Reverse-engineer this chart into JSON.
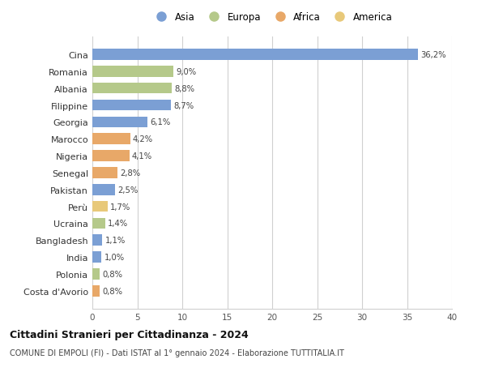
{
  "categories": [
    "Costa d'Avorio",
    "Polonia",
    "India",
    "Bangladesh",
    "Ucraina",
    "Perù",
    "Pakistan",
    "Senegal",
    "Nigeria",
    "Marocco",
    "Georgia",
    "Filippine",
    "Albania",
    "Romania",
    "Cina"
  ],
  "values": [
    0.8,
    0.8,
    1.0,
    1.1,
    1.4,
    1.7,
    2.5,
    2.8,
    4.1,
    4.2,
    6.1,
    8.7,
    8.8,
    9.0,
    36.2
  ],
  "labels": [
    "0,8%",
    "0,8%",
    "1,0%",
    "1,1%",
    "1,4%",
    "1,7%",
    "2,5%",
    "2,8%",
    "4,1%",
    "4,2%",
    "6,1%",
    "8,7%",
    "8,8%",
    "9,0%",
    "36,2%"
  ],
  "colors": [
    "#e8a868",
    "#b5c98a",
    "#7b9fd4",
    "#7b9fd4",
    "#b5c98a",
    "#e8c97a",
    "#7b9fd4",
    "#e8a868",
    "#e8a868",
    "#e8a868",
    "#7b9fd4",
    "#7b9fd4",
    "#b5c98a",
    "#b5c98a",
    "#7b9fd4"
  ],
  "legend": [
    {
      "label": "Asia",
      "color": "#7b9fd4"
    },
    {
      "label": "Europa",
      "color": "#b5c98a"
    },
    {
      "label": "Africa",
      "color": "#e8a868"
    },
    {
      "label": "America",
      "color": "#e8c97a"
    }
  ],
  "title": "Cittadini Stranieri per Cittadinanza - 2024",
  "subtitle": "COMUNE DI EMPOLI (FI) - Dati ISTAT al 1° gennaio 2024 - Elaborazione TUTTITALIA.IT",
  "xlim": [
    0,
    40
  ],
  "xticks": [
    0,
    5,
    10,
    15,
    20,
    25,
    30,
    35,
    40
  ],
  "background_color": "#ffffff",
  "grid_color": "#d0d0d0",
  "bar_height": 0.65
}
